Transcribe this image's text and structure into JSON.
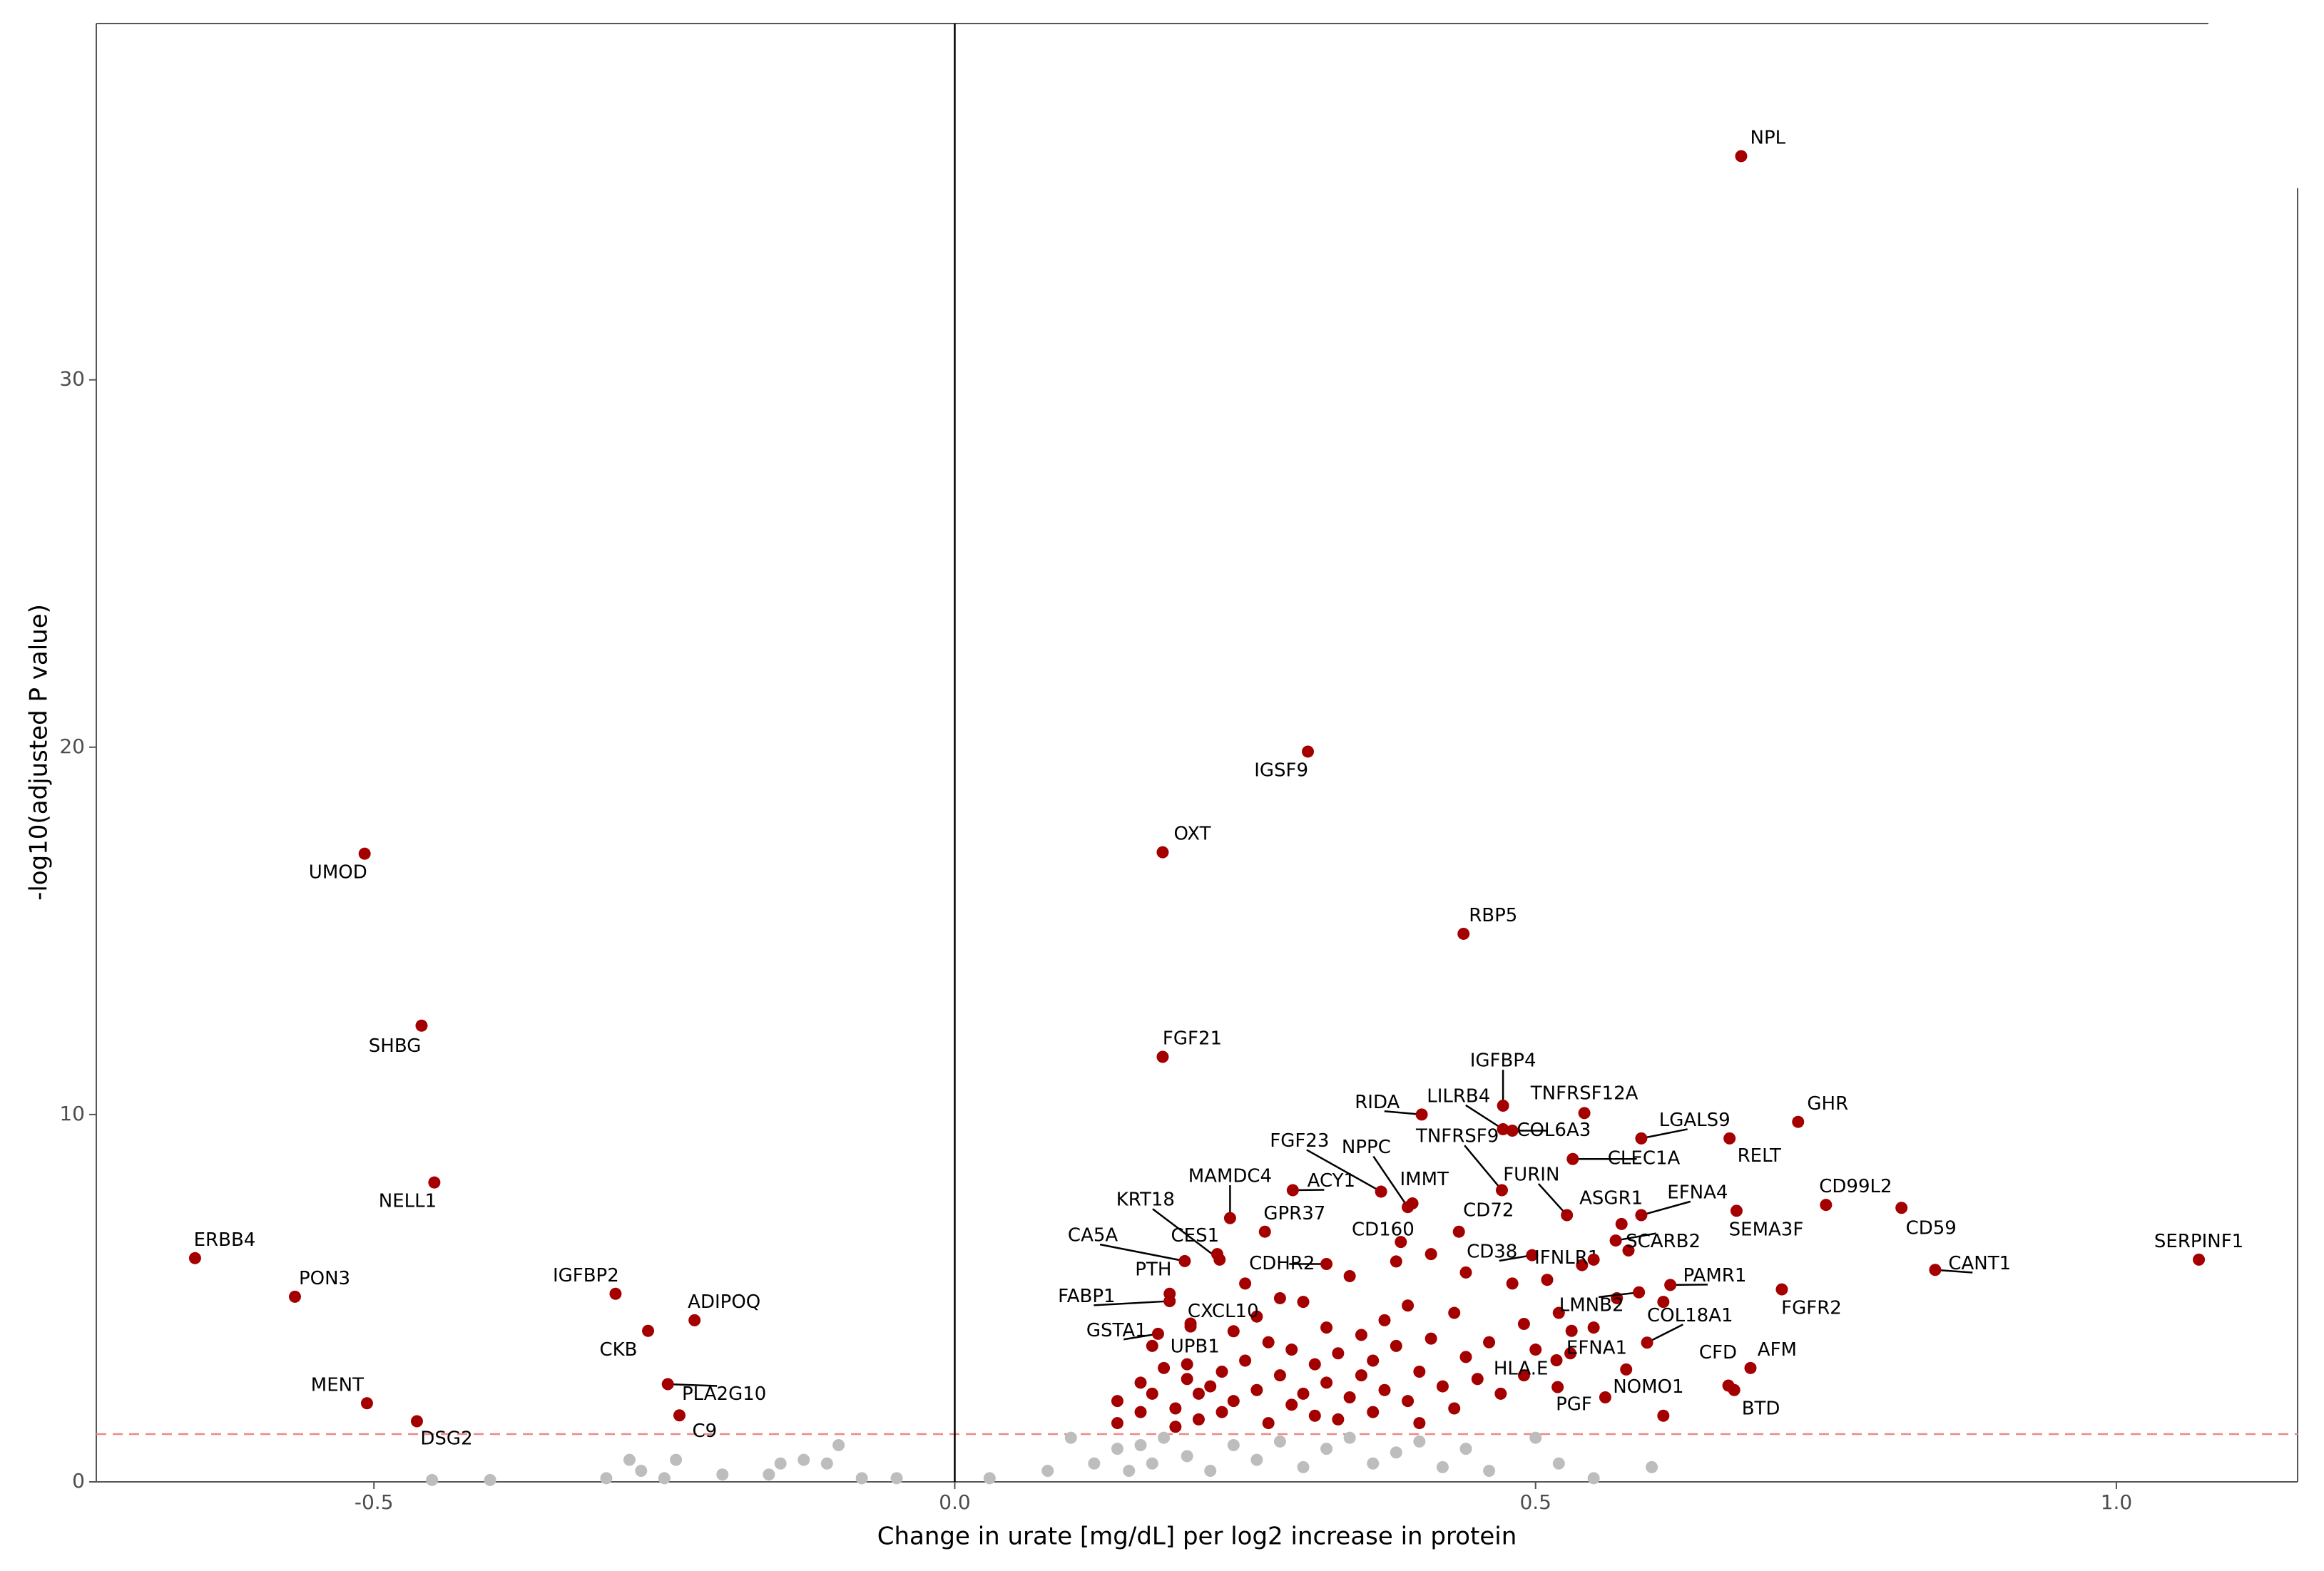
{
  "chart_data": {
    "type": "scatter",
    "xlabel": "Change in urate [mg/dL] per log2 increase in protein",
    "ylabel": "-log10(adjusted P value)",
    "xlim": [
      -0.739,
      1.156
    ],
    "ylim": [
      0,
      39.7
    ],
    "xticks": [
      -0.5,
      {
        "value": 0,
        "label": "0.0"
      },
      0.5,
      {
        "value": 1,
        "label": "1.0"
      }
    ],
    "yticks": [
      0,
      10,
      20,
      30
    ],
    "hline": 1.3,
    "vline": 0,
    "grid": false,
    "series": [
      {
        "color": "#bdbdbd",
        "x": [
          -0.45,
          -0.4,
          -0.3,
          -0.27,
          -0.28,
          -0.25,
          -0.24,
          -0.2,
          -0.15,
          -0.13,
          -0.11,
          -0.1,
          -0.16,
          -0.08,
          -0.05,
          0.03,
          0.08,
          0.1,
          0.12,
          0.14,
          0.15,
          0.16,
          0.17,
          0.18,
          0.2,
          0.22,
          0.24,
          0.26,
          0.28,
          0.3,
          0.32,
          0.34,
          0.36,
          0.38,
          0.4,
          0.42,
          0.44,
          0.46,
          0.5,
          0.52,
          0.55,
          0.6
        ],
        "values": [
          0.05,
          0.05,
          0.1,
          0.3,
          0.6,
          0.1,
          0.6,
          0.2,
          0.5,
          0.6,
          0.5,
          1.0,
          0.2,
          0.1,
          0.1,
          0.1,
          0.3,
          1.2,
          0.5,
          0.9,
          0.3,
          1.0,
          0.5,
          1.2,
          0.7,
          0.3,
          1.0,
          0.6,
          1.1,
          0.4,
          0.9,
          1.2,
          0.5,
          0.8,
          1.1,
          0.4,
          0.9,
          0.3,
          1.2,
          0.5,
          0.1,
          0.4
        ]
      },
      {
        "color": "#a50000",
        "x": [
          0.14,
          0.14,
          0.16,
          0.16,
          0.17,
          0.17,
          0.18,
          0.19,
          0.19,
          0.2,
          0.2,
          0.21,
          0.21,
          0.22,
          0.23,
          0.23,
          0.24,
          0.24,
          0.25,
          0.25,
          0.26,
          0.26,
          0.27,
          0.27,
          0.28,
          0.28,
          0.29,
          0.29,
          0.3,
          0.3,
          0.31,
          0.31,
          0.32,
          0.32,
          0.33,
          0.33,
          0.34,
          0.34,
          0.35,
          0.35,
          0.36,
          0.36,
          0.37,
          0.37,
          0.38,
          0.38,
          0.39,
          0.39,
          0.4,
          0.4,
          0.41,
          0.41,
          0.42,
          0.43,
          0.43,
          0.44,
          0.44,
          0.45,
          0.46,
          0.47,
          0.48,
          0.49,
          0.49,
          0.5,
          0.51,
          0.52,
          0.53,
          0.54,
          0.55,
          0.56,
          0.57,
          0.58,
          0.61,
          0.61
        ],
        "values": [
          2.2,
          1.6,
          2.7,
          1.9,
          3.7,
          2.4,
          3.1,
          2.0,
          1.5,
          2.8,
          3.2,
          2.4,
          1.7,
          2.6,
          3.0,
          1.9,
          4.1,
          2.2,
          5.4,
          3.3,
          2.5,
          4.5,
          3.8,
          1.6,
          2.9,
          5.0,
          2.1,
          3.6,
          4.9,
          2.4,
          1.8,
          3.2,
          4.2,
          2.7,
          3.5,
          1.7,
          2.3,
          5.6,
          4.0,
          2.9,
          3.3,
          1.9,
          4.4,
          2.5,
          3.7,
          6.0,
          2.2,
          4.8,
          3.0,
          1.6,
          6.2,
          3.9,
          2.6,
          4.6,
          2.0,
          3.4,
          5.7,
          2.8,
          3.8,
          2.4,
          5.4,
          4.3,
          2.9,
          3.6,
          5.5,
          4.6,
          3.5,
          5.9,
          4.2,
          2.3,
          5.0,
          6.3,
          1.8,
          4.9
        ]
      },
      {
        "color": "#a50000",
        "labels": [
          "NPL",
          "IGSF9",
          "OXT",
          "RBP5",
          "FGF21",
          "UMOD",
          "SHBG",
          "NELL1",
          "ERBB4",
          "PON3",
          "IGFBP2",
          "ADIPOQ",
          "CKB",
          "PLA2G10",
          "C9",
          "MENT",
          "DSG2",
          "SERPINF1",
          "CANT1",
          "CD59",
          "CD99L2",
          "GHR",
          "LGALS9",
          "RELT",
          "SEMA3F",
          "TNFRSF12A",
          "IGFBP4",
          "RIDA",
          "LILRB4",
          "COL6A3",
          "CLEC1A",
          "TNFRSF9",
          "FGF23",
          "NPPC",
          "IMMT",
          "ACY1",
          "MAMDC4",
          "KRT18",
          "CES1",
          "GPR37",
          "CA5A",
          "CD160",
          "CDHR2",
          "CD72",
          "CD38",
          "FURIN",
          "ASGR1",
          "EFNA4",
          "SCARB2",
          "IFNLR1",
          "PAMR1",
          "LMNB2",
          "FGFR2",
          "COL18A1",
          "EFNA1",
          "HLA.E",
          "PGF",
          "NOMO1",
          "CFD",
          "BTD",
          "AFM",
          "PTH",
          "FABP1",
          "CXCL10",
          "GSTA1",
          "UPB1"
        ],
        "x": [
          0.677,
          0.304,
          0.179,
          0.438,
          0.179,
          -0.508,
          -0.459,
          -0.448,
          -0.654,
          -0.568,
          -0.292,
          -0.224,
          -0.264,
          -0.247,
          -0.237,
          -0.506,
          -0.463,
          1.071,
          0.844,
          0.815,
          0.75,
          0.726,
          0.591,
          0.667,
          0.673,
          0.542,
          0.472,
          0.402,
          0.472,
          0.48,
          0.532,
          0.471,
          0.367,
          0.39,
          0.394,
          0.291,
          0.237,
          0.228,
          0.226,
          0.267,
          0.198,
          0.384,
          0.32,
          0.434,
          0.497,
          0.527,
          0.574,
          0.591,
          0.569,
          0.55,
          0.616,
          0.589,
          0.712,
          0.596,
          0.531,
          0.518,
          0.519,
          0.578,
          0.666,
          0.671,
          0.685,
          0.185,
          0.185,
          0.203,
          0.175,
          0.203
        ],
        "values": [
          36.09,
          19.88,
          17.14,
          14.92,
          11.57,
          17.1,
          12.42,
          8.15,
          6.09,
          5.04,
          5.12,
          4.4,
          4.11,
          2.66,
          1.81,
          2.14,
          1.65,
          6.05,
          5.77,
          7.46,
          7.54,
          9.8,
          9.35,
          9.35,
          7.38,
          10.04,
          10.24,
          10.0,
          9.6,
          9.56,
          8.79,
          7.94,
          7.9,
          7.48,
          7.58,
          7.94,
          7.18,
          6.05,
          6.2,
          6.81,
          6.01,
          6.53,
          5.93,
          6.81,
          6.17,
          7.26,
          7.02,
          7.26,
          6.57,
          6.05,
          5.36,
          5.16,
          5.24,
          3.79,
          4.11,
          3.31,
          2.58,
          3.06,
          2.62,
          2.5,
          3.1,
          5.12,
          4.92,
          4.31,
          4.03,
          4.23
        ]
      }
    ]
  }
}
